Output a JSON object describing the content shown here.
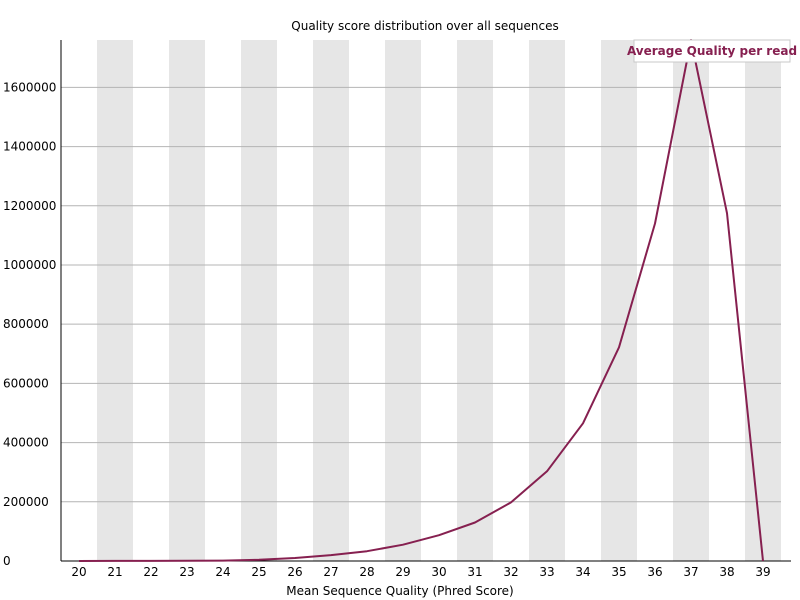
{
  "chart_data": {
    "type": "line",
    "title": "Quality score distribution over all sequences",
    "xlabel": "Mean Sequence Quality (Phred Score)",
    "ylabel": "",
    "x": [
      20,
      21,
      22,
      23,
      24,
      25,
      26,
      27,
      28,
      29,
      30,
      31,
      32,
      33,
      34,
      35,
      36,
      37,
      38,
      39
    ],
    "series": [
      {
        "name": "Average Quality per read",
        "values": [
          100,
          200,
          400,
          800,
          1500,
          4000,
          10000,
          20000,
          33000,
          55000,
          87000,
          130000,
          198000,
          303000,
          465000,
          722000,
          1140000,
          1760000,
          1175000,
          0
        ]
      }
    ],
    "ylim": [
      0,
      1760000
    ],
    "xlim": [
      20,
      39
    ],
    "yticks": [
      "0",
      "200000",
      "400000",
      "600000",
      "800000",
      "1000000",
      "1200000",
      "1400000",
      "1600000"
    ],
    "xticks": [
      "20",
      "21",
      "22",
      "23",
      "24",
      "25",
      "26",
      "27",
      "28",
      "29",
      "30",
      "31",
      "32",
      "33",
      "34",
      "35",
      "36",
      "37",
      "38",
      "39"
    ],
    "legend": "top-right",
    "grid": true,
    "colors": {
      "line": "#862050",
      "band": "#e6e6e6",
      "gridline": "#b4b4b4",
      "axis": "#000000"
    }
  }
}
